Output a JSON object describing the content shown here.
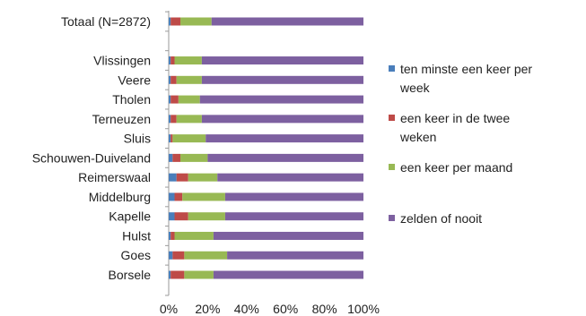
{
  "chart_data": {
    "type": "bar",
    "orientation": "horizontal",
    "stacked": "percent",
    "categories": [
      "Totaal (N=2872)",
      "",
      "Vlissingen",
      "Veere",
      "Tholen",
      "Terneuzen",
      "Sluis",
      "Schouwen-Duiveland",
      "Reimerswaal",
      "Middelburg",
      "Kapelle",
      "Hulst",
      "Goes",
      "Borsele"
    ],
    "series": [
      {
        "name": "ten minste een keer per week",
        "color": "#4a7ebb",
        "values": [
          1,
          null,
          1,
          1,
          1,
          1,
          1,
          2,
          4,
          3,
          3,
          1,
          2,
          1
        ]
      },
      {
        "name": "een keer in de twee weken",
        "color": "#be4b48",
        "values": [
          5,
          null,
          2,
          3,
          4,
          3,
          1,
          4,
          6,
          4,
          7,
          2,
          6,
          7
        ]
      },
      {
        "name": "een keer per maand",
        "color": "#98b954",
        "values": [
          16,
          null,
          14,
          13,
          11,
          13,
          17,
          14,
          15,
          22,
          19,
          20,
          22,
          15
        ]
      },
      {
        "name": "zelden of nooit",
        "color": "#7d60a0",
        "values": [
          78,
          null,
          83,
          83,
          84,
          83,
          81,
          80,
          75,
          71,
          71,
          77,
          70,
          77
        ]
      }
    ],
    "xlim": [
      0,
      100
    ],
    "xticks": [
      "0%",
      "20%",
      "40%",
      "60%",
      "80%",
      "100%"
    ],
    "legend": {
      "placement": "right",
      "entries": [
        {
          "lines": [
            "ten minste een keer per",
            "week"
          ],
          "color": "#4a7ebb"
        },
        {
          "lines": [
            "een keer in de twee",
            "weken"
          ],
          "color": "#be4b48"
        },
        {
          "lines": [
            "een keer per maand"
          ],
          "color": "#98b954"
        },
        {
          "lines": [
            "zelden of nooit"
          ],
          "color": "#7d60a0"
        }
      ]
    },
    "grid": false
  }
}
